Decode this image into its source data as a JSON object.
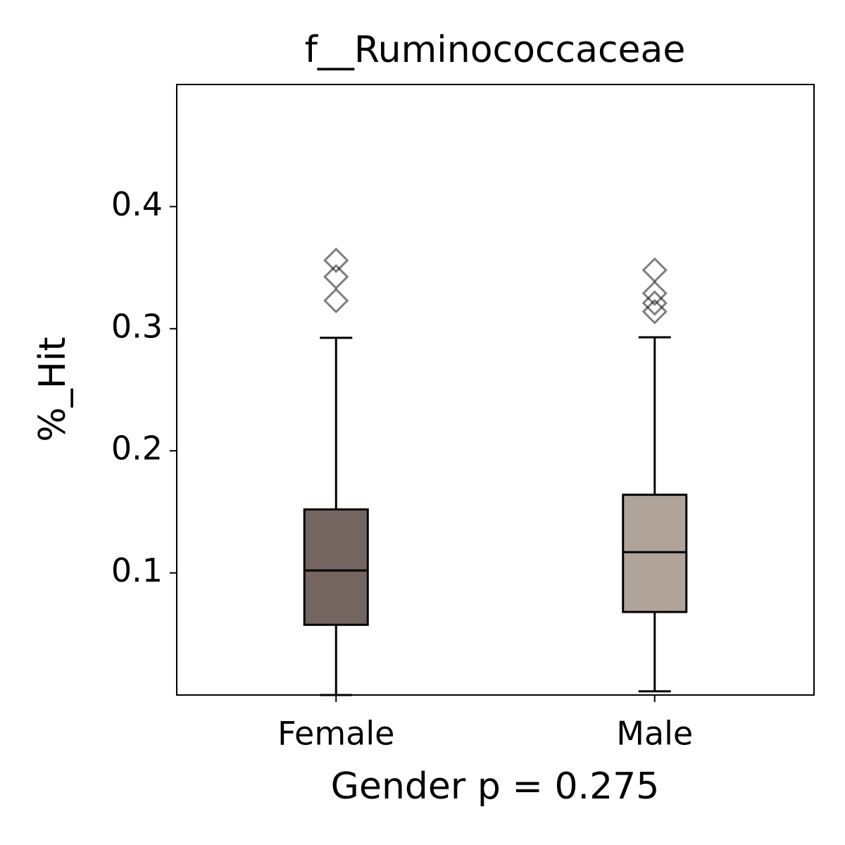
{
  "chart_data": {
    "type": "box",
    "title": "f__Ruminococcaceae",
    "x_label": "Gender p = 0.275",
    "y_label": "%_Hit",
    "categories": [
      "Female",
      "Male"
    ],
    "boxes": [
      {
        "whislo": 0.0,
        "q1": 0.0575,
        "med": 0.102,
        "q3": 0.152,
        "whishi": 0.2925,
        "fliers": [
          0.356,
          0.3425,
          0.323
        ],
        "color": "#756560"
      },
      {
        "whislo": 0.003,
        "q1": 0.068,
        "med": 0.117,
        "q3": 0.164,
        "whishi": 0.293,
        "fliers": [
          0.348,
          0.329,
          0.321,
          0.314
        ],
        "color": "#b0a49a"
      }
    ],
    "ylim": [
      0,
      0.5
    ],
    "yticks": [
      0.1,
      0.2,
      0.3,
      0.4
    ],
    "grid": false
  }
}
